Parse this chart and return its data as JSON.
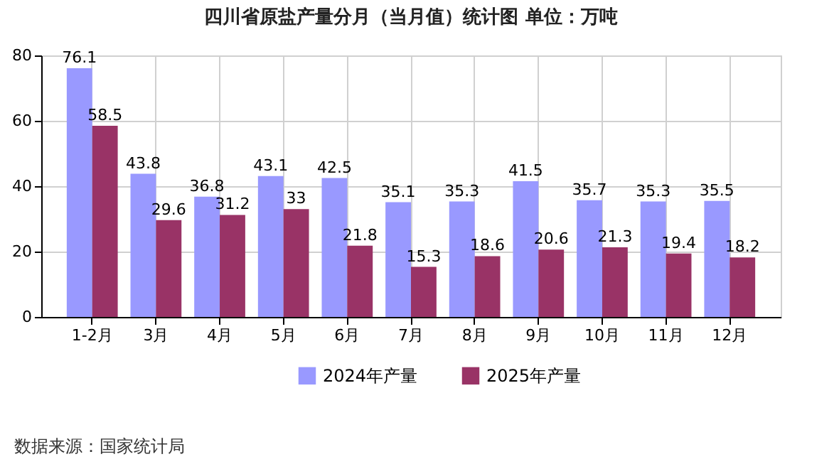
{
  "chart_data": {
    "type": "bar",
    "title": "四川省原盐产量分月（当月值）统计图 单位：万吨",
    "categories": [
      "1-2月",
      "3月",
      "4月",
      "5月",
      "6月",
      "7月",
      "8月",
      "9月",
      "10月",
      "11月",
      "12月"
    ],
    "series": [
      {
        "name": "2024年产量",
        "color": "#9999ff",
        "values": [
          76.1,
          43.8,
          36.8,
          43.1,
          42.5,
          35.1,
          35.3,
          41.5,
          35.7,
          35.3,
          35.5
        ]
      },
      {
        "name": "2025年产量",
        "color": "#993366",
        "values": [
          58.5,
          29.6,
          31.2,
          33,
          21.8,
          15.3,
          18.6,
          20.6,
          21.3,
          19.4,
          18.2
        ]
      }
    ],
    "ylim": [
      0,
      80
    ],
    "yticks": [
      0,
      20,
      40,
      60,
      80
    ],
    "grid": true,
    "legend": "bottom",
    "data_labels": true,
    "annotations": [
      "数据来源：国家统计局"
    ]
  }
}
